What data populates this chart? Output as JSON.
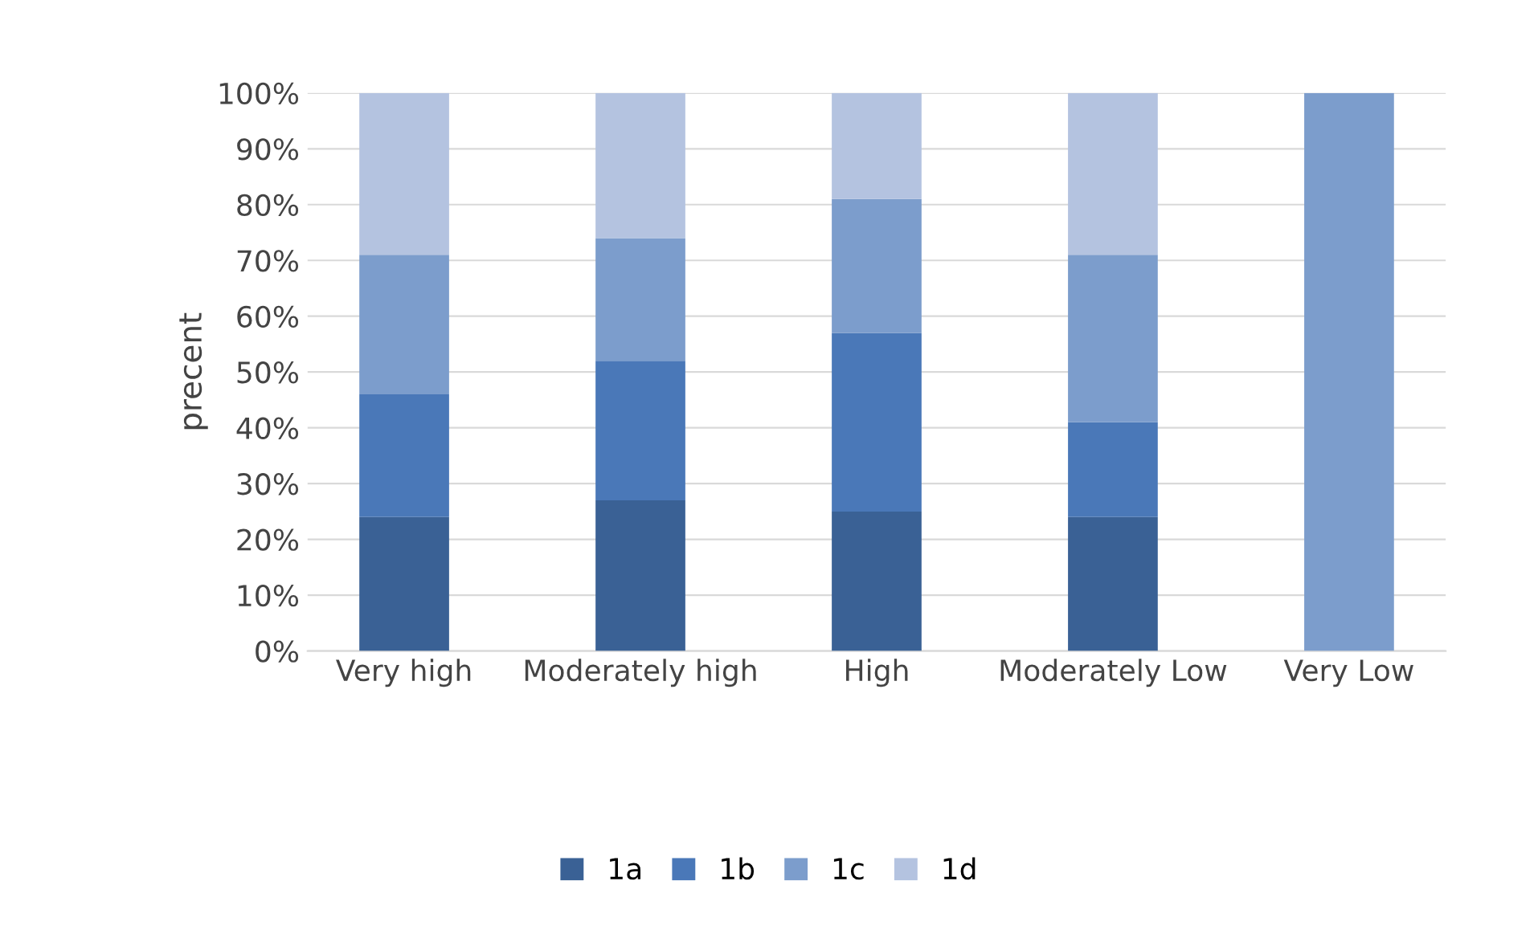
{
  "chart_data": {
    "type": "bar",
    "stacked": true,
    "ylabel": "precent",
    "categories": [
      "Very high",
      "Moderately high",
      "High",
      "Moderately Low",
      "Very Low"
    ],
    "series": [
      {
        "name": "1a",
        "color": "#3a6195",
        "values": [
          24,
          27,
          25,
          24,
          0
        ]
      },
      {
        "name": "1b",
        "color": "#4a78b8",
        "values": [
          22,
          25,
          32,
          17,
          0
        ]
      },
      {
        "name": "1c",
        "color": "#7c9dcc",
        "values": [
          25,
          22,
          24,
          30,
          100
        ]
      },
      {
        "name": "1d",
        "color": "#b4c3e0",
        "values": [
          29,
          26,
          19,
          29,
          0
        ]
      }
    ],
    "ylim": [
      0,
      100
    ],
    "yticks": [
      {
        "value": 0,
        "label": "0%"
      },
      {
        "value": 10,
        "label": "10%"
      },
      {
        "value": 20,
        "label": "20%"
      },
      {
        "value": 30,
        "label": "30%"
      },
      {
        "value": 40,
        "label": "40%"
      },
      {
        "value": 50,
        "label": "50%"
      },
      {
        "value": 60,
        "label": "60%"
      },
      {
        "value": 70,
        "label": "70%"
      },
      {
        "value": 80,
        "label": "80%"
      },
      {
        "value": 90,
        "label": "90%"
      },
      {
        "value": 100,
        "label": "100%"
      }
    ],
    "grid": "y",
    "legend": "bottom"
  }
}
